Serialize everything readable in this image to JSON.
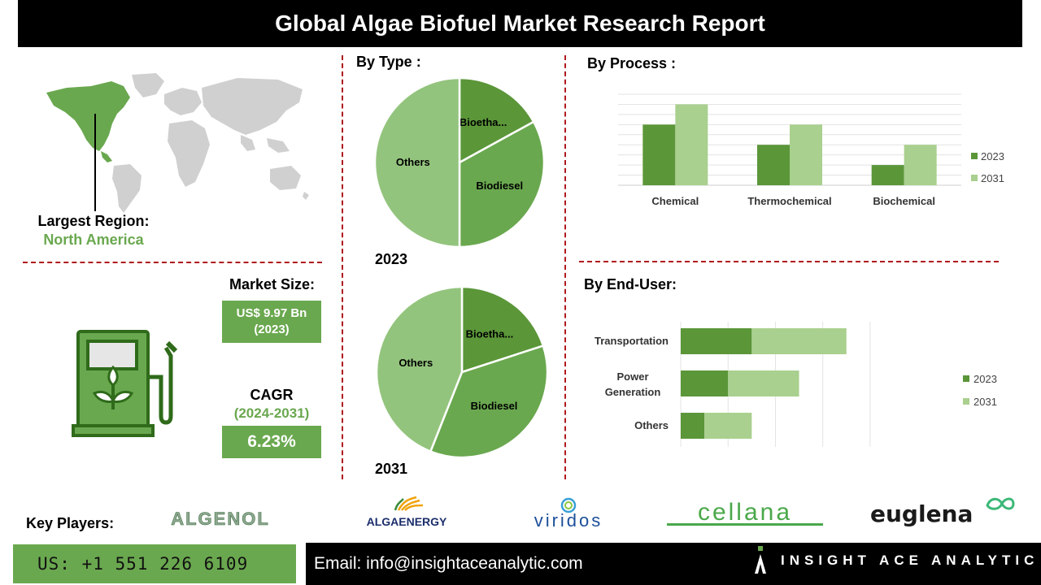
{
  "header": {
    "title": "Global Algae Biofuel Market Research Report"
  },
  "region": {
    "label": "Largest Region:",
    "value": "North America"
  },
  "market": {
    "size_label": "Market Size:",
    "size_value_line1": "US$ 9.97 Bn",
    "size_value_line2": "(2023)",
    "cagr_label": "CAGR",
    "cagr_period": "(2024-2031)",
    "cagr_value": "6.23%"
  },
  "by_type": {
    "title": "By Type :"
  },
  "by_process": {
    "title": "By  Process :"
  },
  "by_end_user": {
    "title": "By End-User:"
  },
  "key_players": {
    "label": "Key Players:",
    "logos": [
      "ALGENOL",
      "ALGAENERGY",
      "viridos",
      "cellana",
      "euglena"
    ]
  },
  "footer": {
    "phone": "US: +1 551 226 6109",
    "email": "Email: info@insightaceanalytic.com",
    "brand": "INSIGHT ACE ANALYTIC"
  },
  "colors": {
    "green_dark": "#5b9639",
    "green_mid": "#6aa84f",
    "green_light": "#93c47d",
    "green_pale": "#a9d08e",
    "accent_red": "#b0191e"
  },
  "chart_data": [
    {
      "type": "pie",
      "year": "2023",
      "categories": [
        "Bioetha...",
        "Biodiesel",
        "Others"
      ],
      "values": [
        17,
        33,
        50
      ]
    },
    {
      "type": "pie",
      "year": "2031",
      "categories": [
        "Bioetha...",
        "Biodiesel",
        "Others"
      ],
      "values": [
        20,
        36,
        44
      ]
    },
    {
      "type": "bar",
      "categories": [
        "Chemical",
        "Thermochemical",
        "Biochemical"
      ],
      "series": [
        {
          "name": "2023",
          "values": [
            3,
            2,
            1
          ]
        },
        {
          "name": "2031",
          "values": [
            4,
            3,
            2
          ]
        }
      ],
      "ylim": [
        0,
        4.5
      ],
      "legend": "right",
      "grid": true
    },
    {
      "type": "bar",
      "orientation": "horizontal",
      "stacked": true,
      "categories": [
        "Transportation",
        "Power Generation",
        "Others"
      ],
      "series": [
        {
          "name": "2023",
          "values": [
            3,
            2,
            1
          ]
        },
        {
          "name": "2031",
          "values": [
            4,
            3,
            2
          ]
        }
      ],
      "xlim": [
        0,
        9
      ],
      "legend": "right",
      "grid": true
    }
  ]
}
